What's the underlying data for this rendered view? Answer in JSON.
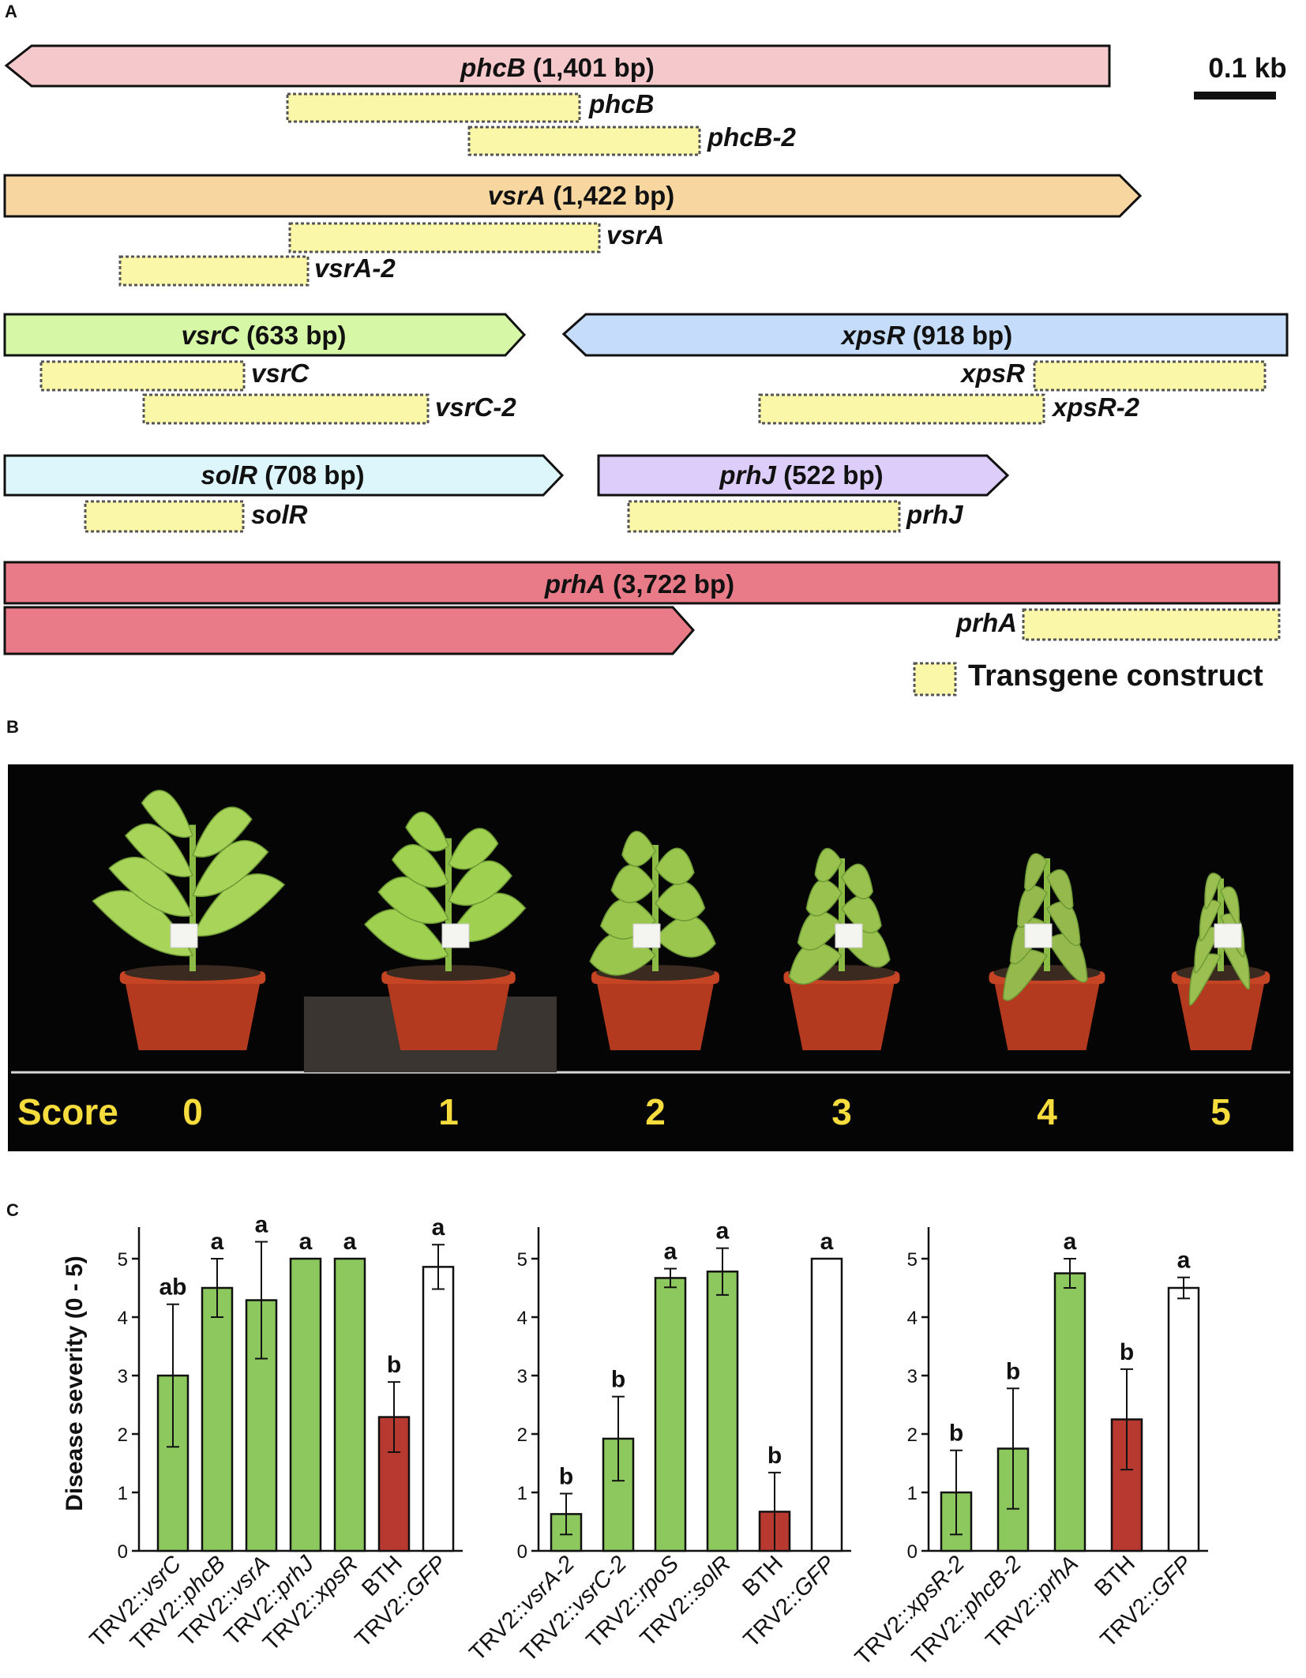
{
  "panels": {
    "a": "A",
    "b": "B",
    "c": "C"
  },
  "colors": {
    "phcB": "#f5c9cc",
    "vsrA": "#f8d69f",
    "vsrC": "#d5f7a6",
    "xpsR": "#c5ddfa",
    "solR": "#dcf6fb",
    "prhJ": "#dccdfa",
    "prhA": "#e97b88",
    "construct": "#fbf7a9",
    "bar_green": "#8dc85e",
    "bar_red": "#b7392f",
    "bar_white": "#ffffff"
  },
  "gene_map": {
    "genes": [
      {
        "id": "phcB",
        "name": "phcB",
        "size": " (1,401 bp)"
      },
      {
        "id": "vsrA",
        "name": "vsrA",
        "size": " (1,422 bp)"
      },
      {
        "id": "vsrC",
        "name": "vsrC",
        "size": " (633 bp)"
      },
      {
        "id": "xpsR",
        "name": "xpsR",
        "size": " (918 bp)"
      },
      {
        "id": "solR",
        "name": "solR",
        "size": " (708 bp)"
      },
      {
        "id": "prhJ",
        "name": "prhJ",
        "size": " (522 bp)"
      },
      {
        "id": "prhA",
        "name": "prhA",
        "size": " (3,722 bp)"
      }
    ],
    "constructs": [
      "phcB",
      "phcB-2",
      "vsrA",
      "vsrA-2",
      "vsrC",
      "vsrC-2",
      "xpsR",
      "xpsR-2",
      "solR",
      "prhJ",
      "prhA"
    ],
    "scale_bar": "0.1 kb",
    "legend": "Transgene construct"
  },
  "score_panel": {
    "label": "Score",
    "scores": [
      "0",
      "1",
      "2",
      "3",
      "4",
      "5"
    ]
  },
  "chart_data": [
    {
      "type": "bar",
      "ylabel": "Disease severity (0 - 5)",
      "ylim": [
        0,
        5
      ],
      "yticks": [
        "0",
        "1",
        "2",
        "3",
        "4",
        "5"
      ],
      "categories": [
        {
          "prefix": "TRV2::",
          "gene": "vsrC"
        },
        {
          "prefix": "TRV2::",
          "gene": "phcB"
        },
        {
          "prefix": "TRV2::",
          "gene": "vsrA"
        },
        {
          "prefix": "TRV2::",
          "gene": "prhJ"
        },
        {
          "prefix": "TRV2::",
          "gene": "xpsR"
        },
        {
          "prefix": "BTH",
          "gene": ""
        },
        {
          "prefix": "TRV2::",
          "gene": "GFP"
        }
      ],
      "values": [
        3.0,
        4.5,
        4.29,
        5.0,
        5.0,
        2.29,
        4.86
      ],
      "errors": [
        1.22,
        0.5,
        1.0,
        0,
        0,
        0.6,
        0.38
      ],
      "letters": [
        "ab",
        "a",
        "a",
        "a",
        "a",
        "b",
        "a"
      ],
      "bar_colors": [
        "green",
        "green",
        "green",
        "green",
        "green",
        "red",
        "white"
      ]
    },
    {
      "type": "bar",
      "ylim": [
        0,
        5
      ],
      "yticks": [
        "0",
        "1",
        "2",
        "3",
        "4",
        "5"
      ],
      "categories": [
        {
          "prefix": "TRV2::",
          "gene": "vsrA-2"
        },
        {
          "prefix": "TRV2::",
          "gene": "vsrC-2"
        },
        {
          "prefix": "TRV2::",
          "gene": "rpoS"
        },
        {
          "prefix": "TRV2::",
          "gene": "solR"
        },
        {
          "prefix": "BTH",
          "gene": ""
        },
        {
          "prefix": "TRV2::",
          "gene": "GFP"
        }
      ],
      "values": [
        0.63,
        1.92,
        4.67,
        4.78,
        0.67,
        5.0
      ],
      "errors": [
        0.35,
        0.72,
        0.16,
        0.4,
        0.67,
        0
      ],
      "letters": [
        "b",
        "b",
        "a",
        "a",
        "b",
        "a"
      ],
      "bar_colors": [
        "green",
        "green",
        "green",
        "green",
        "red",
        "white"
      ]
    },
    {
      "type": "bar",
      "ylim": [
        0,
        5
      ],
      "yticks": [
        "0",
        "1",
        "2",
        "3",
        "4",
        "5"
      ],
      "categories": [
        {
          "prefix": "TRV2::",
          "gene": "xpsR-2"
        },
        {
          "prefix": "TRV2::",
          "gene": "phcB-2"
        },
        {
          "prefix": "TRV2::",
          "gene": "prhA"
        },
        {
          "prefix": "BTH",
          "gene": ""
        },
        {
          "prefix": "TRV2::",
          "gene": "GFP"
        }
      ],
      "values": [
        1.0,
        1.75,
        4.75,
        2.25,
        4.5
      ],
      "errors": [
        0.72,
        1.03,
        0.25,
        0.86,
        0.18
      ],
      "letters": [
        "b",
        "b",
        "a",
        "b",
        "a"
      ],
      "bar_colors": [
        "green",
        "green",
        "green",
        "red",
        "white"
      ]
    }
  ]
}
